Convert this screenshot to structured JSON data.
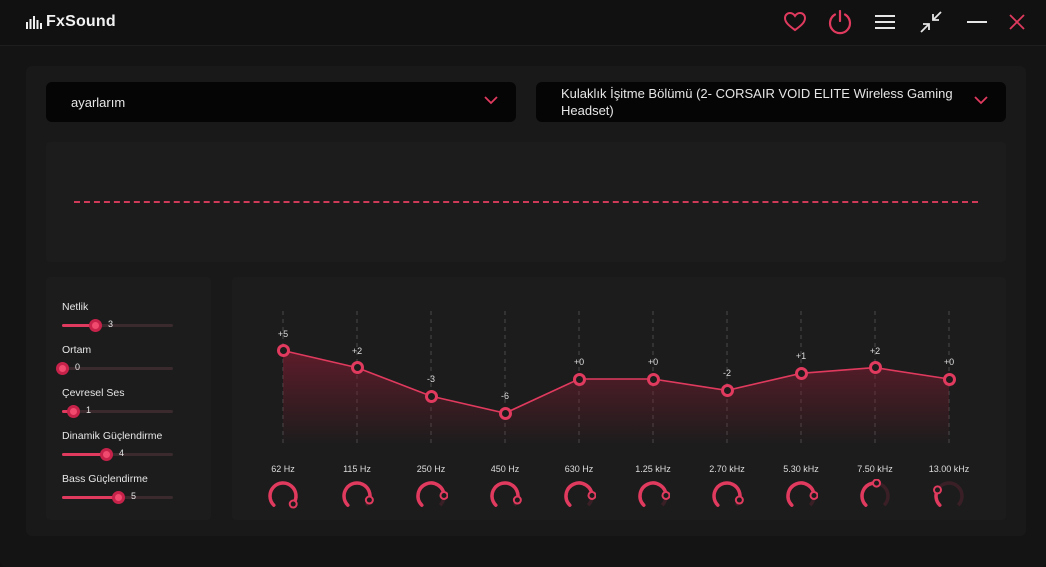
{
  "app": {
    "name": "FxSound"
  },
  "colors": {
    "accent": "#e03a5e",
    "background": "#141414",
    "panel": "#1c1c1c"
  },
  "titlebar": {
    "icons": [
      "heart-icon",
      "power-icon",
      "menu-icon",
      "shrink-icon",
      "minimize-icon",
      "close-icon"
    ]
  },
  "preset": {
    "selected": "ayarlarım"
  },
  "device": {
    "selected": "Kulaklık İşitme Bölümü (2- CORSAIR VOID ELITE Wireless Gaming Headset)"
  },
  "effects": [
    {
      "label": "Netlik",
      "value": "3",
      "level": 0.3
    },
    {
      "label": "Ortam",
      "value": "0",
      "level": 0.0
    },
    {
      "label": "Çevresel Ses",
      "value": "1",
      "level": 0.1
    },
    {
      "label": "Dinamik Güçlendirme",
      "value": "4",
      "level": 0.4
    },
    {
      "label": "Bass Güçlendirme",
      "value": "5",
      "level": 0.5
    }
  ],
  "equalizer": {
    "gain_range": [
      -12,
      12
    ],
    "bands": [
      {
        "freq": "62 Hz",
        "gain_label": "+5",
        "gain": 5
      },
      {
        "freq": "115 Hz",
        "gain_label": "+2",
        "gain": 2
      },
      {
        "freq": "250 Hz",
        "gain_label": "-3",
        "gain": -3
      },
      {
        "freq": "450 Hz",
        "gain_label": "-6",
        "gain": -6
      },
      {
        "freq": "630 Hz",
        "gain_label": "+0",
        "gain": 0
      },
      {
        "freq": "1.25 kHz",
        "gain_label": "+0",
        "gain": 0
      },
      {
        "freq": "2.70 kHz",
        "gain_label": "-2",
        "gain": -2
      },
      {
        "freq": "5.30 kHz",
        "gain_label": "+1",
        "gain": 1
      },
      {
        "freq": "7.50 kHz",
        "gain_label": "+2",
        "gain": 2
      },
      {
        "freq": "13.00 kHz",
        "gain_label": "+0",
        "gain": 0
      }
    ],
    "knobs": [
      0.55,
      0.5,
      0.45,
      0.5,
      0.45,
      0.45,
      0.5,
      0.45,
      0.25,
      0.08
    ]
  }
}
